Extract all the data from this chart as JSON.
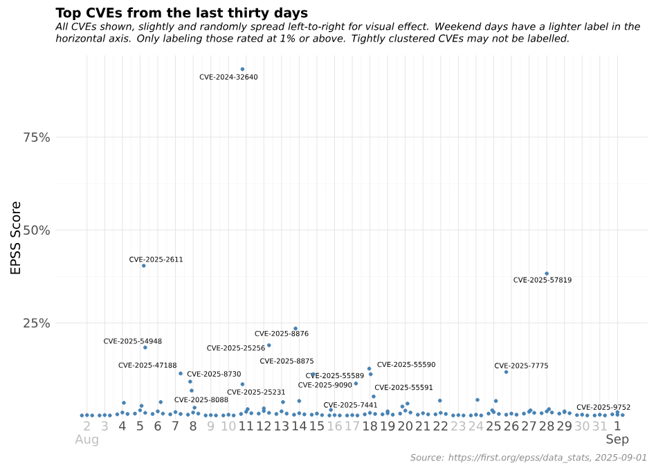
{
  "chart_data": {
    "type": "scatter",
    "title": "Top CVEs from the last thirty days",
    "subtitle": "All CVEs shown, slightly and randomly spread left-to-right for visual effect. Weekend days have a lighter label in the horizontal axis. Only labeling those rated at 1% or above. Tightly clustered CVEs may not be labelled.",
    "ylabel": "EPSS Score",
    "annotations": [
      "Source: https://first.org/epss/data_stats, 2025-09-01"
    ],
    "color": "#4682b4",
    "grid": true,
    "xlim": [
      "2025-07-31T05:00",
      "2025-09-02T17:00"
    ],
    "ylim": [
      -1,
      97
    ],
    "xticks": [
      {
        "value": "2025-08-02",
        "label": "2 Aug"
      },
      {
        "value": "2025-08-03",
        "label": "3"
      },
      {
        "value": "2025-08-04",
        "label": "4"
      },
      {
        "value": "2025-08-05",
        "label": "5"
      },
      {
        "value": "2025-08-06",
        "label": "6"
      },
      {
        "value": "2025-08-07",
        "label": "7"
      },
      {
        "value": "2025-08-08",
        "label": "8"
      },
      {
        "value": "2025-08-09",
        "label": "9"
      },
      {
        "value": "2025-08-10",
        "label": "10"
      },
      {
        "value": "2025-08-11",
        "label": "11"
      },
      {
        "value": "2025-08-12",
        "label": "12"
      },
      {
        "value": "2025-08-13",
        "label": "13"
      },
      {
        "value": "2025-08-14",
        "label": "14"
      },
      {
        "value": "2025-08-15",
        "label": "15"
      },
      {
        "value": "2025-08-16",
        "label": "16"
      },
      {
        "value": "2025-08-17",
        "label": "17"
      },
      {
        "value": "2025-08-18",
        "label": "18"
      },
      {
        "value": "2025-08-19",
        "label": "19"
      },
      {
        "value": "2025-08-20",
        "label": "20"
      },
      {
        "value": "2025-08-21",
        "label": "21"
      },
      {
        "value": "2025-08-22",
        "label": "22"
      },
      {
        "value": "2025-08-23",
        "label": "23"
      },
      {
        "value": "2025-08-24",
        "label": "24"
      },
      {
        "value": "2025-08-25",
        "label": "25"
      },
      {
        "value": "2025-08-26",
        "label": "26"
      },
      {
        "value": "2025-08-27",
        "label": "27"
      },
      {
        "value": "2025-08-28",
        "label": "28"
      },
      {
        "value": "2025-08-29",
        "label": "29"
      },
      {
        "value": "2025-08-30",
        "label": "30"
      },
      {
        "value": "2025-08-31",
        "label": "31"
      },
      {
        "value": "2025-09-01",
        "label": "1 Sep"
      }
    ],
    "yticks": [
      {
        "value": 25,
        "label": "25%"
      },
      {
        "value": 50,
        "label": "50%"
      },
      {
        "value": 75,
        "label": "75%"
      }
    ],
    "x": [
      "2025-08-10T19:00",
      "2025-08-05T05:00",
      "2025-08-28T00:00",
      "2025-08-13T19:00",
      "2025-08-05T07:00",
      "2025-08-12T07:00",
      "2025-08-07T07:00",
      "2025-08-07T20:00",
      "2025-08-14T19:00",
      "2025-08-18T01:00",
      "2025-08-17T23:00",
      "2025-08-17T05:00",
      "2025-08-18T05:00",
      "2025-08-10T19:00",
      "2025-08-07T22:00",
      "2025-08-15T19:00",
      "2025-08-25T17:00",
      "2025-09-01T00:00",
      "2025-08-01T17:00",
      "2025-08-02T00:00",
      "2025-08-02T07:00",
      "2025-08-02T17:00",
      "2025-08-03T00:00",
      "2025-08-03T07:00",
      "2025-08-03T17:00",
      "2025-08-04T00:00",
      "2025-08-04T07:00",
      "2025-08-04T17:00",
      "2025-08-05T00:00",
      "2025-08-05T07:00",
      "2025-08-05T17:00",
      "2025-08-06T00:00",
      "2025-08-06T07:00",
      "2025-08-06T17:00",
      "2025-08-07T00:00",
      "2025-08-07T07:00",
      "2025-08-07T17:00",
      "2025-08-08T00:00",
      "2025-08-08T07:00",
      "2025-08-08T17:00",
      "2025-08-09T00:00",
      "2025-08-09T07:00",
      "2025-08-09T17:00",
      "2025-08-10T00:00",
      "2025-08-10T07:00",
      "2025-08-10T17:00",
      "2025-08-11T00:00",
      "2025-08-11T07:00",
      "2025-08-11T17:00",
      "2025-08-12T00:00",
      "2025-08-12T07:00",
      "2025-08-12T17:00",
      "2025-08-13T00:00",
      "2025-08-13T07:00",
      "2025-08-13T17:00",
      "2025-08-14T00:00",
      "2025-08-14T07:00",
      "2025-08-14T17:00",
      "2025-08-15T00:00",
      "2025-08-15T07:00",
      "2025-08-15T17:00",
      "2025-08-16T00:00",
      "2025-08-16T07:00",
      "2025-08-16T17:00",
      "2025-08-17T00:00",
      "2025-08-17T07:00",
      "2025-08-17T17:00",
      "2025-08-18T00:00",
      "2025-08-18T07:00",
      "2025-08-18T17:00",
      "2025-08-19T00:00",
      "2025-08-19T07:00",
      "2025-08-19T17:00",
      "2025-08-20T00:00",
      "2025-08-20T07:00",
      "2025-08-20T17:00",
      "2025-08-21T00:00",
      "2025-08-21T07:00",
      "2025-08-21T17:00",
      "2025-08-22T00:00",
      "2025-08-22T07:00",
      "2025-08-22T17:00",
      "2025-08-23T00:00",
      "2025-08-23T07:00",
      "2025-08-23T17:00",
      "2025-08-24T00:00",
      "2025-08-24T07:00",
      "2025-08-24T17:00",
      "2025-08-25T00:00",
      "2025-08-25T07:00",
      "2025-08-25T17:00",
      "2025-08-26T00:00",
      "2025-08-26T07:00",
      "2025-08-26T17:00",
      "2025-08-27T00:00",
      "2025-08-27T07:00",
      "2025-08-27T17:00",
      "2025-08-28T00:00",
      "2025-08-28T07:00",
      "2025-08-28T17:00",
      "2025-08-29T00:00",
      "2025-08-29T07:00",
      "2025-08-29T17:00",
      "2025-08-30T00:00",
      "2025-08-30T07:00",
      "2025-08-30T17:00",
      "2025-08-31T00:00",
      "2025-08-31T07:00",
      "2025-08-31T17:00",
      "2025-09-01T00:00",
      "2025-09-01T07:00",
      "2025-08-04T02:00",
      "2025-08-05T02:00",
      "2025-08-06T04:00",
      "2025-08-13T02:00",
      "2025-08-14T00:00",
      "2025-08-21T23:00",
      "2025-08-24T22:00",
      "2025-08-25T03:00",
      "2025-08-24T02:00",
      "2025-08-19T20:00",
      "2025-08-20T03:00",
      "2025-08-19T00:00",
      "2025-08-12T00:00",
      "2025-08-11T02:00",
      "2025-08-08T02:00",
      "2025-08-27T02:00",
      "2025-08-28T03:00",
      "2025-08-29T00:00"
    ],
    "values": [
      93.3,
      40.4,
      38.3,
      23.5,
      18.4,
      19.0,
      11.4,
      9.2,
      11.2,
      11.2,
      12.7,
      8.7,
      5.2,
      8.5,
      6.8,
      1.6,
      11.8,
      1.0,
      0.1,
      0.2,
      0.1,
      0.1,
      0.2,
      0.1,
      0.4,
      0.9,
      0.5,
      0.6,
      1.5,
      0.8,
      0.5,
      1.2,
      0.6,
      0.4,
      1.0,
      0.5,
      0.3,
      0.9,
      0.6,
      0.1,
      0.2,
      0.1,
      0.1,
      0.3,
      0.1,
      0.5,
      1.1,
      0.7,
      0.6,
      1.3,
      0.8,
      0.5,
      1.2,
      0.6,
      0.3,
      0.7,
      0.4,
      0.3,
      0.6,
      0.2,
      0.1,
      0.2,
      0.1,
      0.1,
      0.2,
      0.1,
      0.4,
      0.8,
      0.5,
      0.4,
      0.7,
      0.3,
      0.6,
      1.4,
      0.9,
      0.3,
      0.7,
      0.4,
      0.4,
      0.8,
      0.5,
      0.1,
      0.2,
      0.1,
      0.1,
      0.3,
      0.1,
      0.6,
      1.0,
      0.5,
      0.3,
      0.6,
      0.3,
      0.6,
      1.1,
      0.8,
      0.7,
      1.2,
      0.9,
      0.6,
      1.0,
      0.7,
      0.2,
      0.3,
      0.1,
      0.1,
      0.3,
      0.1,
      0.4,
      0.3,
      0.2,
      3.5,
      2.7,
      3.7,
      3.7,
      4.0,
      4.1,
      1.5,
      4.0,
      4.3,
      2.5,
      3.3,
      1.2,
      2.0,
      1.8,
      2.2,
      1.5,
      1.8,
      1.2
    ],
    "value_labels": [
      "CVE-2024-32640",
      "CVE-2025-2611",
      "CVE-2025-57819",
      "CVE-2025-8876",
      "CVE-2025-54948",
      "CVE-2025-25256",
      "CVE-2025-47188",
      "CVE-2025-8730",
      "CVE-2025-8875",
      "CVE-2025-55589",
      "CVE-2025-55590",
      "CVE-2025-9090",
      "CVE-2025-55591",
      "CVE-2025-25231",
      "CVE-2025-8088",
      "CVE-2025-7441",
      "CVE-2025-7775",
      "CVE-2025-9752",
      null,
      null,
      null,
      null,
      null,
      null,
      null,
      null,
      null,
      null,
      null,
      null,
      null,
      null,
      null,
      null,
      null,
      null,
      null,
      null,
      null,
      null,
      null,
      null,
      null,
      null,
      null,
      null,
      null,
      null,
      null,
      null,
      null,
      null,
      null,
      null,
      null,
      null,
      null,
      null,
      null,
      null,
      null,
      null,
      null,
      null,
      null,
      null,
      null,
      null,
      null,
      null,
      null,
      null,
      null,
      null,
      null,
      null,
      null,
      null,
      null,
      null,
      null,
      null,
      null,
      null,
      null,
      null,
      null,
      null,
      null,
      null,
      null,
      null,
      null,
      null,
      null,
      null,
      null,
      null,
      null,
      null,
      null,
      null,
      null,
      null,
      null,
      null,
      null,
      null,
      null,
      null,
      null,
      null,
      null,
      null,
      null,
      null,
      null,
      null,
      null,
      null,
      null,
      null,
      null,
      null,
      null,
      null,
      null,
      null,
      null
    ]
  }
}
